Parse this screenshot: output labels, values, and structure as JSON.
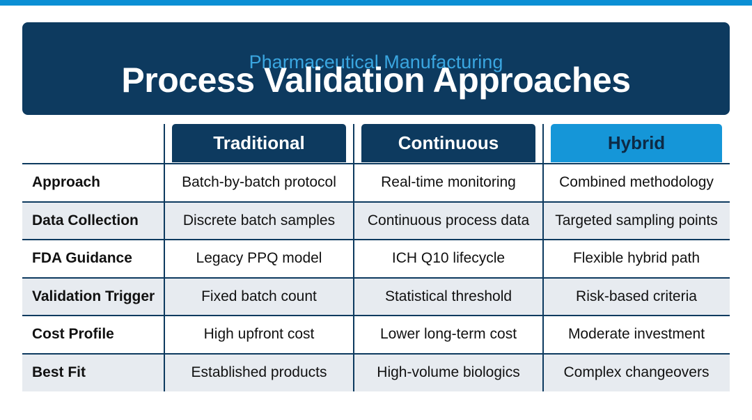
{
  "header": {
    "subtitle": "Pharmaceutical Manufacturing",
    "title": "Process Validation Approaches"
  },
  "table": {
    "columns": [
      "Traditional",
      "Continuous",
      "Hybrid"
    ],
    "rows": [
      [
        "Approach",
        "Batch-by-batch protocol",
        "Real-time monitoring",
        "Combined methodology"
      ],
      [
        "Data Collection",
        "Discrete batch samples",
        "Continuous process data",
        "Targeted sampling points"
      ],
      [
        "FDA Guidance",
        "Legacy PPQ model",
        "ICH Q10 lifecycle",
        "Flexible hybrid path"
      ],
      [
        "Validation Trigger",
        "Fixed batch count",
        "Statistical threshold",
        "Risk-based criteria"
      ],
      [
        "Cost Profile",
        "High upfront cost",
        "Lower long-term cost",
        "Moderate investment"
      ],
      [
        "Best Fit",
        "Established products",
        "High-volume biologics",
        "Complex changeovers"
      ]
    ]
  }
}
